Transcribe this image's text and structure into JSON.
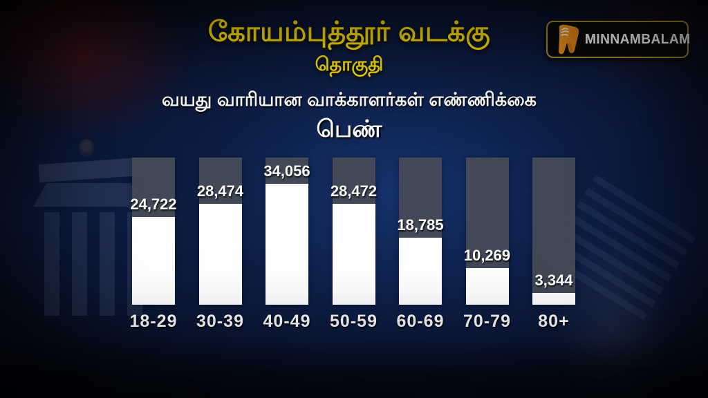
{
  "header": {
    "title": "கோயம்புத்தூர் வடக்கு",
    "subtitle": "தொகுதி",
    "heading2": "வயது வாரியான வாக்காளர்கள் எண்ணிக்கை",
    "gender_label": "பெண்",
    "title_color": "#ffe608"
  },
  "logo": {
    "text": "MINNAMBALAM",
    "icon": "minnambalam-m-icon",
    "border_color": "#ab9030",
    "icon_color": "#ef8e1b"
  },
  "chart_data": {
    "type": "bar",
    "title": "வயது வாரியான வாக்காளர்கள் எண்ணிக்கை — பெண் (கோயம்புத்தூர் வடக்கு தொகுதி)",
    "categories": [
      "18-29",
      "30-39",
      "40-49",
      "50-59",
      "60-69",
      "70-79",
      "80+"
    ],
    "values": [
      24722,
      28474,
      34056,
      28472,
      18785,
      10269,
      3344
    ],
    "value_labels": [
      "24,722",
      "28,474",
      "34,056",
      "28,472",
      "18,785",
      "10,269",
      "3,344"
    ],
    "xlabel": "",
    "ylabel": "",
    "ylim": [
      0,
      41800
    ],
    "grid": false,
    "legend": "none",
    "bar_color": "#ffffff",
    "track_color": "#474b57",
    "label_color": "#ffffff"
  }
}
